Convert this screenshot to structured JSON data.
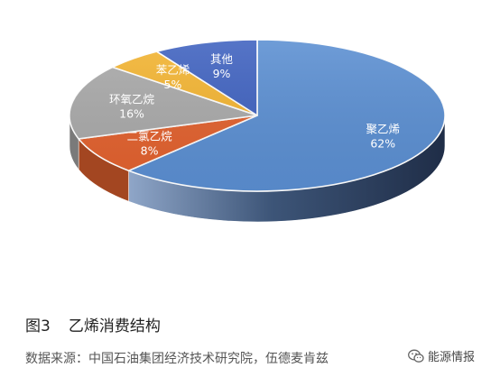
{
  "chart_data": {
    "type": "pie",
    "title": "",
    "slices": [
      {
        "label": "聚乙烯",
        "value": 62,
        "value_text": "62%",
        "color": "#5b8fd2"
      },
      {
        "label": "二氯乙烷",
        "value": 8,
        "value_text": "8%",
        "color": "#e2612e"
      },
      {
        "label": "环氧乙烷",
        "value": 16,
        "value_text": "16%",
        "color": "#a9a9a9"
      },
      {
        "label": "苯乙烯",
        "value": 5,
        "value_text": "5%",
        "color": "#f3b431"
      },
      {
        "label": "其他",
        "value": 9,
        "value_text": "9%",
        "color": "#3f62c0"
      }
    ],
    "legend": "none",
    "style": "3d-pie",
    "side_color": "#2b3f63"
  },
  "caption": {
    "figure_number": "图3",
    "title": "乙烯消费结构"
  },
  "source_note": "数据来源：中国石油集团经济技术研究院，伍德麦肯兹",
  "watermark": {
    "text": "能源情报",
    "icon": "wechat-icon"
  }
}
